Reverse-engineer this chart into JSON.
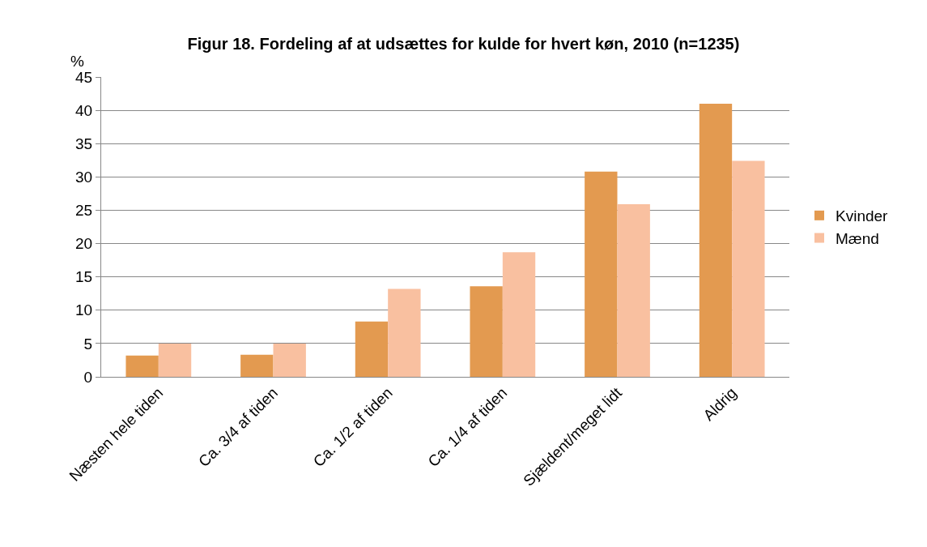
{
  "chart_data": {
    "type": "bar",
    "title": "Figur 18. Fordeling af at udsættes for kulde for hvert køn, 2010 (n=1235)",
    "ylabel": "%",
    "categories": [
      "Næsten hele tiden",
      "Ca. 3/4 af tiden",
      "Ca. 1/2 af tiden",
      "Ca. 1/4 af tiden",
      "Sjældent/meget lidt",
      "Aldrig"
    ],
    "series": [
      {
        "name": "Kvinder",
        "color": "#e39a50",
        "values": [
          3.2,
          3.3,
          8.3,
          13.6,
          30.8,
          41.0
        ]
      },
      {
        "name": "Mænd",
        "color": "#f9c0a0",
        "values": [
          5.0,
          5.0,
          13.2,
          18.7,
          25.9,
          32.4
        ]
      }
    ],
    "ylim": [
      0,
      45
    ],
    "yticks": [
      0,
      5,
      10,
      15,
      20,
      25,
      30,
      35,
      40,
      45
    ],
    "grid": "y",
    "legend": "right"
  }
}
